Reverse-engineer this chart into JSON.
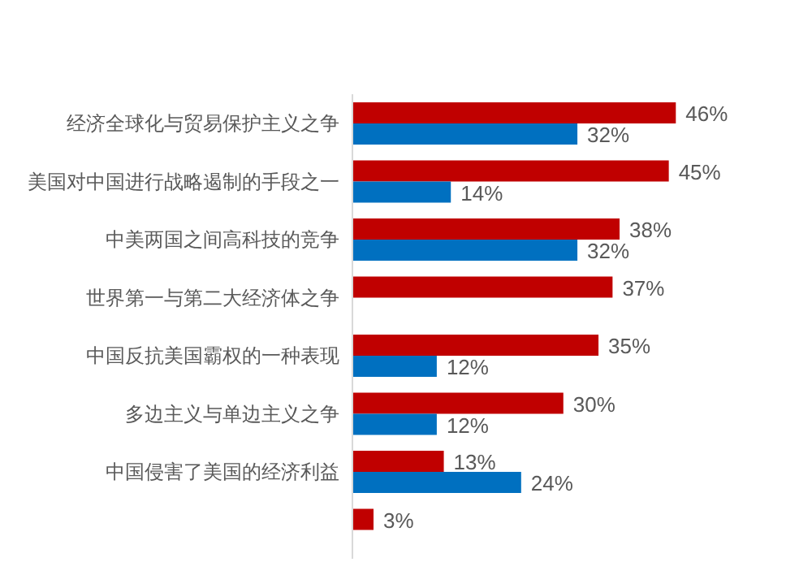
{
  "chart_data": {
    "type": "bar",
    "orientation": "horizontal",
    "categories": [
      "经济全球化与贸易保护主义之争",
      "美国对中国进行战略遏制的手段之一",
      "中美两国之间高科技的竞争",
      "世界第一与第二大经济体之争",
      "中国反抗美国霸权的一种表现",
      "多边主义与单边主义之争",
      "中国侵害了美国的经济利益",
      null
    ],
    "series": [
      {
        "color": "#c00000",
        "values": [
          46,
          45,
          38,
          37,
          35,
          30,
          13,
          3
        ],
        "value_labels": [
          "46%",
          "45%",
          "38%",
          "37%",
          "35%",
          "30%",
          "13%",
          "3%"
        ]
      },
      {
        "color": "#0070c0",
        "values": [
          32,
          14,
          32,
          null,
          12,
          12,
          24,
          null
        ],
        "value_labels": [
          "32%",
          "14%",
          "32%",
          null,
          "12%",
          "12%",
          "24%",
          null
        ]
      }
    ],
    "legend": false
  }
}
